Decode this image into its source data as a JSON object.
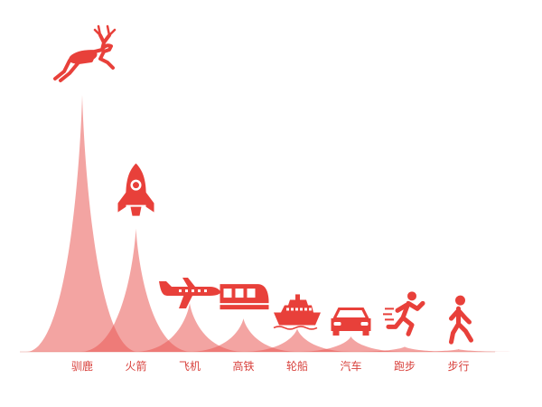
{
  "chart_data": {
    "type": "area",
    "categories": [
      "驯鹿",
      "火箭",
      "飞机",
      "高铁",
      "轮船",
      "汽车",
      "跑步",
      "步行"
    ],
    "values": [
      100,
      48,
      19,
      13,
      9,
      6,
      2,
      1
    ],
    "ylim": [
      0,
      100
    ],
    "icons": [
      "deer-icon",
      "rocket-icon",
      "airplane-icon",
      "train-icon",
      "ship-icon",
      "car-icon",
      "runner-icon",
      "walker-icon"
    ]
  },
  "colors": {
    "peak_fill": "#ea5a55",
    "peak_opacity": 0.55,
    "icon": "#e8403a",
    "label": "#d8423d",
    "baseline": "#f0c8c4"
  }
}
